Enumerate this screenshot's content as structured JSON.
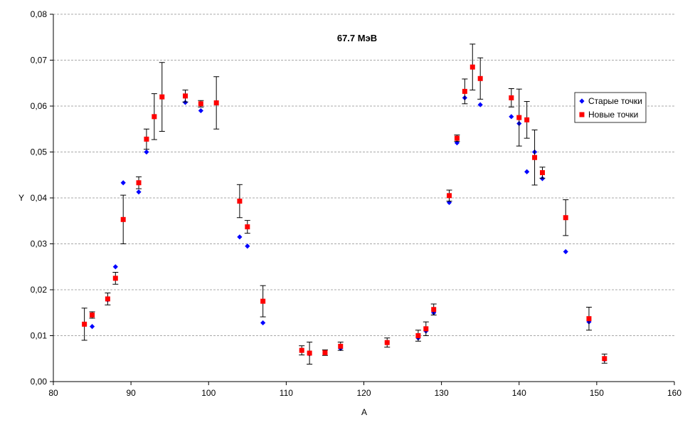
{
  "chart_data": {
    "type": "scatter",
    "title": "67.7 МэВ",
    "xlabel": "A",
    "ylabel": "Y",
    "xlim": [
      80,
      160
    ],
    "ylim": [
      0,
      0.08
    ],
    "x_ticks": [
      "80",
      "90",
      "100",
      "110",
      "120",
      "130",
      "140",
      "150",
      "160"
    ],
    "y_ticks": [
      "0,00",
      "0,01",
      "0,02",
      "0,03",
      "0,04",
      "0,05",
      "0,06",
      "0,07",
      "0,08"
    ],
    "grid": "horizontal-dashed",
    "legend_position": "right",
    "series": [
      {
        "name": "Старые точки",
        "marker": "diamond",
        "color": "#0000ff",
        "points": [
          {
            "x": 84,
            "y": 0.0125
          },
          {
            "x": 85,
            "y": 0.012
          },
          {
            "x": 87,
            "y": 0.0178
          },
          {
            "x": 88,
            "y": 0.025
          },
          {
            "x": 89,
            "y": 0.0433
          },
          {
            "x": 91,
            "y": 0.0413
          },
          {
            "x": 92,
            "y": 0.05
          },
          {
            "x": 97,
            "y": 0.0608
          },
          {
            "x": 99,
            "y": 0.059
          },
          {
            "x": 104,
            "y": 0.0315
          },
          {
            "x": 105,
            "y": 0.0295
          },
          {
            "x": 107,
            "y": 0.0128
          },
          {
            "x": 112,
            "y": 0.0068
          },
          {
            "x": 113,
            "y": 0.006
          },
          {
            "x": 115,
            "y": 0.0063
          },
          {
            "x": 117,
            "y": 0.0072
          },
          {
            "x": 123,
            "y": 0.0085
          },
          {
            "x": 127,
            "y": 0.0095
          },
          {
            "x": 128,
            "y": 0.011
          },
          {
            "x": 129,
            "y": 0.015
          },
          {
            "x": 131,
            "y": 0.039
          },
          {
            "x": 132,
            "y": 0.052
          },
          {
            "x": 133,
            "y": 0.0618
          },
          {
            "x": 135,
            "y": 0.0603
          },
          {
            "x": 139,
            "y": 0.0577
          },
          {
            "x": 140,
            "y": 0.0562
          },
          {
            "x": 141,
            "y": 0.0457
          },
          {
            "x": 142,
            "y": 0.05
          },
          {
            "x": 143,
            "y": 0.0442
          },
          {
            "x": 146,
            "y": 0.0283
          },
          {
            "x": 149,
            "y": 0.013
          },
          {
            "x": 151,
            "y": 0.0048
          }
        ]
      },
      {
        "name": "Новые точки",
        "marker": "square",
        "color": "#ff0000",
        "points": [
          {
            "x": 84,
            "y": 0.0125,
            "err": 0.0035
          },
          {
            "x": 85,
            "y": 0.0145,
            "err": 0.0007
          },
          {
            "x": 87,
            "y": 0.018,
            "err": 0.0013
          },
          {
            "x": 88,
            "y": 0.0225,
            "err": 0.0013
          },
          {
            "x": 89,
            "y": 0.0353,
            "err": 0.0053
          },
          {
            "x": 91,
            "y": 0.0433,
            "err": 0.0013
          },
          {
            "x": 92,
            "y": 0.0528,
            "err": 0.0022
          },
          {
            "x": 93,
            "y": 0.0577,
            "err": 0.005
          },
          {
            "x": 94,
            "y": 0.062,
            "err": 0.0075
          },
          {
            "x": 97,
            "y": 0.0622,
            "err": 0.0013
          },
          {
            "x": 99,
            "y": 0.0605,
            "err": 0.0007
          },
          {
            "x": 101,
            "y": 0.0607,
            "err": 0.0057
          },
          {
            "x": 104,
            "y": 0.0393,
            "err": 0.0036
          },
          {
            "x": 105,
            "y": 0.0337,
            "err": 0.0014
          },
          {
            "x": 107,
            "y": 0.0175,
            "err": 0.0034
          },
          {
            "x": 112,
            "y": 0.0068,
            "err": 0.001
          },
          {
            "x": 113,
            "y": 0.0062,
            "err": 0.0024
          },
          {
            "x": 115,
            "y": 0.0063,
            "err": 0.0006
          },
          {
            "x": 117,
            "y": 0.0077,
            "err": 0.0009
          },
          {
            "x": 123,
            "y": 0.0085,
            "err": 0.001
          },
          {
            "x": 127,
            "y": 0.01,
            "err": 0.0012
          },
          {
            "x": 128,
            "y": 0.0115,
            "err": 0.0015
          },
          {
            "x": 129,
            "y": 0.0157,
            "err": 0.0012
          },
          {
            "x": 131,
            "y": 0.0405,
            "err": 0.0012
          },
          {
            "x": 132,
            "y": 0.053,
            "err": 0.0007
          },
          {
            "x": 133,
            "y": 0.0632,
            "err": 0.0027
          },
          {
            "x": 134,
            "y": 0.0685,
            "err": 0.005
          },
          {
            "x": 135,
            "y": 0.066,
            "err": 0.0045
          },
          {
            "x": 139,
            "y": 0.0618,
            "err": 0.002
          },
          {
            "x": 140,
            "y": 0.0575,
            "err": 0.0062
          },
          {
            "x": 141,
            "y": 0.057,
            "err": 0.004
          },
          {
            "x": 142,
            "y": 0.0488,
            "err": 0.006
          },
          {
            "x": 143,
            "y": 0.0455,
            "err": 0.0012
          },
          {
            "x": 146,
            "y": 0.0357,
            "err": 0.0039
          },
          {
            "x": 149,
            "y": 0.0137,
            "err": 0.0025
          },
          {
            "x": 151,
            "y": 0.005,
            "err": 0.001
          }
        ]
      }
    ]
  }
}
